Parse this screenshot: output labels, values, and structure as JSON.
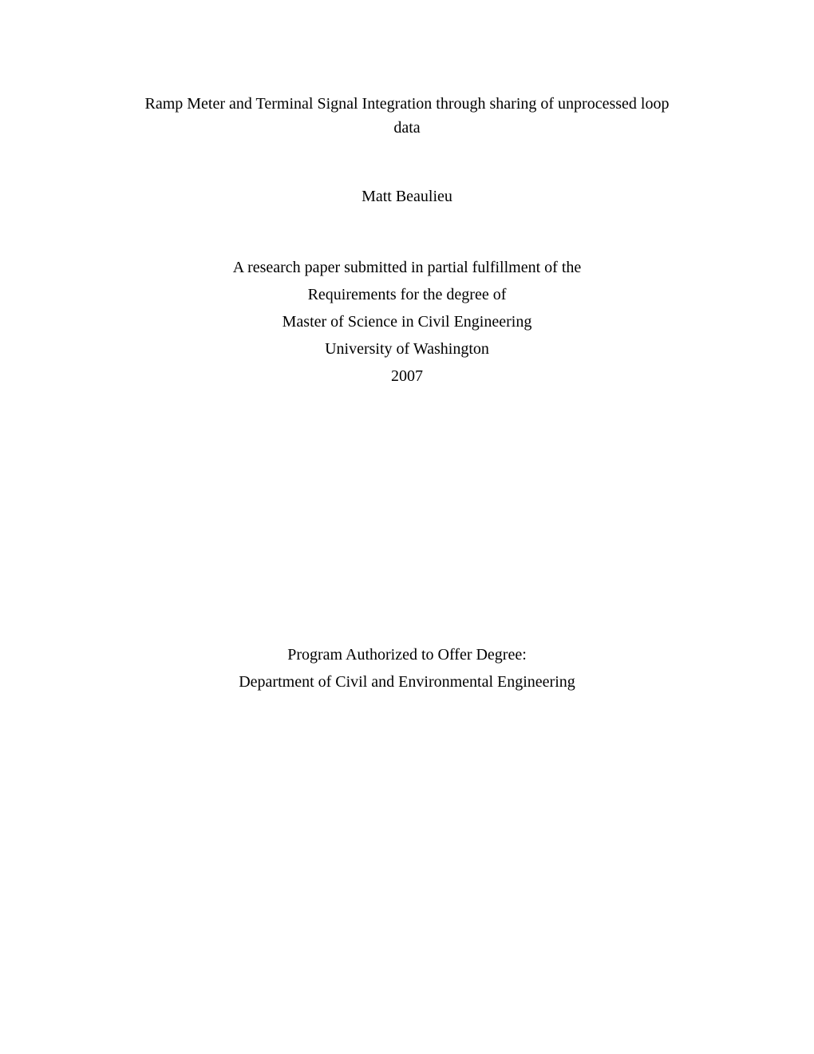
{
  "page": {
    "background_color": "#ffffff",
    "text_color": "#000000",
    "font_family": "Times New Roman",
    "font_size_pt": 15
  },
  "title": "Ramp Meter and Terminal Signal Integration through sharing of unprocessed loop data",
  "author": "Matt Beaulieu",
  "degree": {
    "line1": "A research paper submitted in partial fulfillment of the",
    "line2": "Requirements for the degree of",
    "line3": "Master of Science in Civil Engineering",
    "line4": "University of Washington",
    "year": "2007"
  },
  "program": {
    "line1": "Program Authorized to Offer Degree:",
    "line2": "Department of Civil and Environmental Engineering"
  }
}
